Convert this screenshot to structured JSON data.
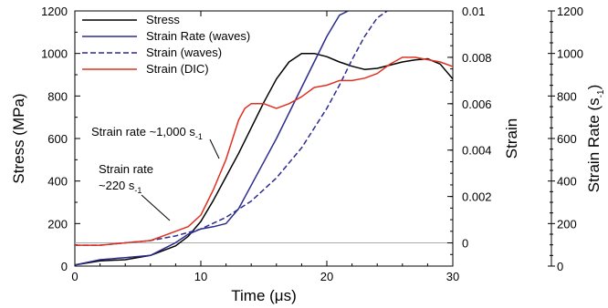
{
  "chart_data": {
    "type": "line",
    "x_label": "Time (μs)",
    "x_range": [
      0,
      30
    ],
    "x_ticks": [
      "0",
      "10",
      "20",
      "30"
    ],
    "y_left_label": "Stress (MPa)",
    "y_left_range": [
      0,
      1200
    ],
    "y_left_ticks": [
      "0",
      "200",
      "400",
      "600",
      "800",
      "1000",
      "1200"
    ],
    "y_strain_label": "Strain",
    "y_strain_range": [
      -0.001,
      0.01
    ],
    "y_strain_ticks": [
      "0",
      "0.002",
      "0.004",
      "0.006",
      "0.008",
      "0.01"
    ],
    "y_rate_label_main": "Strain Rate (s",
    "y_rate_label_sup": "-1",
    "y_rate_label_end": ")",
    "y_rate_range": [
      0,
      1200
    ],
    "y_rate_ticks": [
      "0",
      "200",
      "400",
      "600",
      "800",
      "1000",
      "1200"
    ],
    "legend": [
      {
        "label": "Stress",
        "color": "#000000",
        "dash": "solid"
      },
      {
        "label": "Strain Rate (waves)",
        "color": "#2c2c8c",
        "dash": "solid"
      },
      {
        "label": "Strain (waves)",
        "color": "#2c2c8c",
        "dash": "dashed"
      },
      {
        "label": "Strain (DIC)",
        "color": "#e03020",
        "dash": "solid"
      }
    ],
    "annotations": [
      {
        "text": "Strain rate ~1,000 s",
        "sup": "-1"
      },
      {
        "text_line1": "Strain rate",
        "text_line2": "~220 s",
        "sup": "-1"
      }
    ],
    "series": [
      {
        "name": "Stress",
        "axis": "stress",
        "color": "#000000",
        "x": [
          0,
          2,
          4,
          6,
          8,
          9,
          10,
          11,
          12,
          13,
          14,
          15,
          16,
          17,
          18,
          19,
          20,
          21,
          22,
          23,
          24,
          25,
          26,
          27,
          28,
          29,
          30
        ],
        "y": [
          5,
          25,
          30,
          50,
          95,
          140,
          210,
          310,
          420,
          530,
          650,
          770,
          880,
          960,
          1000,
          1000,
          985,
          960,
          940,
          925,
          930,
          945,
          960,
          970,
          975,
          950,
          880
        ]
      },
      {
        "name": "Strain Rate (waves)",
        "axis": "rate",
        "color": "#2c2c8c",
        "x": [
          0,
          2,
          4,
          6,
          8,
          9,
          10,
          11,
          12,
          13,
          14,
          15,
          16,
          17,
          18,
          19,
          20,
          21,
          21.7
        ],
        "y": [
          5,
          30,
          40,
          50,
          110,
          150,
          175,
          185,
          200,
          270,
          380,
          490,
          600,
          720,
          840,
          960,
          1080,
          1180,
          1200
        ]
      },
      {
        "name": "Strain (waves)",
        "axis": "strain",
        "color": "#2c2c8c",
        "dashed": true,
        "x": [
          0,
          2,
          4,
          6,
          8,
          10,
          12,
          14,
          16,
          18,
          20,
          21,
          22,
          23,
          24,
          24.8
        ],
        "y": [
          -0.0001,
          -0.0001,
          0.0,
          0.0001,
          0.0003,
          0.0006,
          0.0011,
          0.0018,
          0.0028,
          0.0041,
          0.0058,
          0.0068,
          0.0079,
          0.0089,
          0.0097,
          0.01
        ]
      },
      {
        "name": "Strain (DIC)",
        "axis": "strain",
        "color": "#e03020",
        "x": [
          0,
          2,
          4,
          6,
          7,
          8,
          9,
          10,
          11,
          12,
          13,
          13.5,
          14,
          15,
          16,
          17,
          18,
          19,
          20,
          21,
          22,
          23,
          24,
          25,
          26,
          27,
          28,
          29,
          30
        ],
        "y": [
          -0.0001,
          -0.0001,
          0.0,
          0.0001,
          0.0003,
          0.0005,
          0.0007,
          0.0012,
          0.0023,
          0.0036,
          0.0053,
          0.0058,
          0.006,
          0.006,
          0.0058,
          0.006,
          0.0063,
          0.0067,
          0.0068,
          0.007,
          0.007,
          0.0071,
          0.0073,
          0.0077,
          0.008,
          0.008,
          0.0079,
          0.0078,
          0.0076
        ]
      }
    ],
    "reference_line": {
      "axis": "strain",
      "y": 0,
      "color": "#aaaaaa"
    }
  }
}
